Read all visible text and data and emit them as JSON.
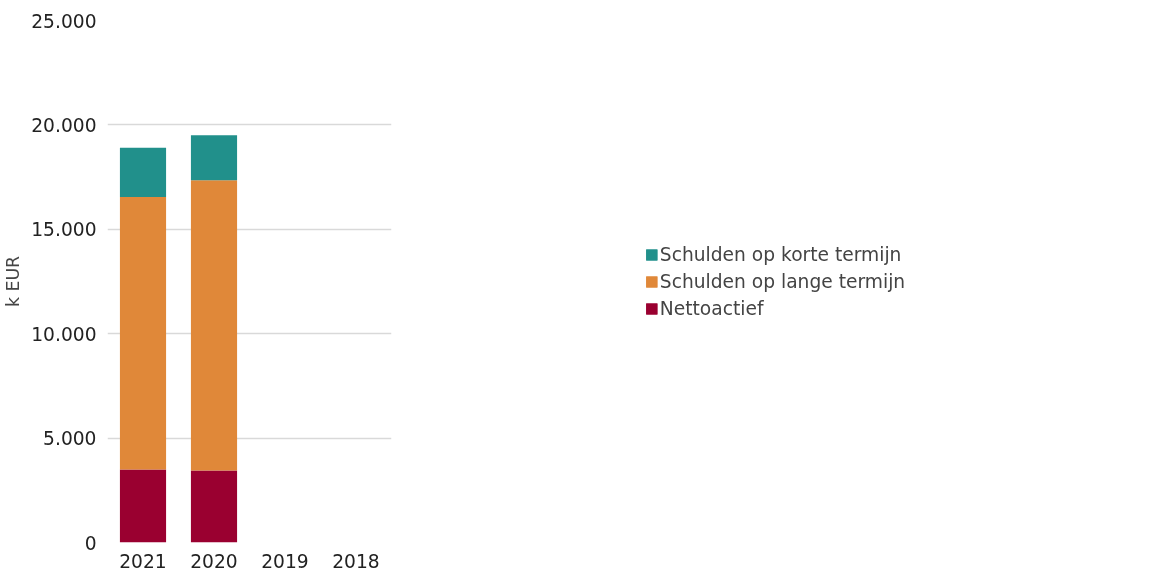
{
  "chart_data": {
    "type": "bar",
    "stacked": true,
    "ylabel": "k EUR",
    "categories": [
      "2021",
      "2020",
      "2019",
      "2018"
    ],
    "series": [
      {
        "name": "Nettoactief",
        "color": "#9a0030",
        "values": [
          3500,
          3450,
          null,
          null
        ]
      },
      {
        "name": "Schulden op lange termijn",
        "color": "#e08839",
        "values": [
          13050,
          13900,
          null,
          null
        ]
      },
      {
        "name": "Schulden op korte termijn",
        "color": "#21908b",
        "values": [
          2350,
          2150,
          null,
          null
        ]
      }
    ],
    "ylim": [
      0,
      25000
    ],
    "yticks": [
      {
        "value": 0,
        "label": "0"
      },
      {
        "value": 5000,
        "label": "5.000"
      },
      {
        "value": 10000,
        "label": "10.000"
      },
      {
        "value": 15000,
        "label": "15.000"
      },
      {
        "value": 20000,
        "label": "20.000"
      },
      {
        "value": 25000,
        "label": "25.000"
      }
    ],
    "grid": "y",
    "legend": "right"
  }
}
